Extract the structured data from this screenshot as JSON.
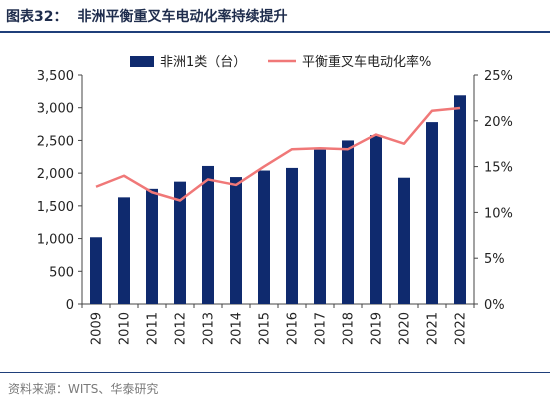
{
  "header": {
    "figure_label": "图表32：",
    "title": "非洲平衡重叉车电动化率持续提升"
  },
  "footer": {
    "source": "资料来源：WITS、华泰研究"
  },
  "colors": {
    "bar": "#0f2a6e",
    "line": "#f07878",
    "rule": "#1f3f7a"
  },
  "chart_data": {
    "type": "bar",
    "categories": [
      "2009",
      "2010",
      "2011",
      "2012",
      "2013",
      "2014",
      "2015",
      "2016",
      "2017",
      "2018",
      "2019",
      "2020",
      "2021",
      "2022"
    ],
    "series": [
      {
        "name": "非洲1类（台）",
        "type": "bar",
        "axis": "left",
        "values": [
          1020,
          1630,
          1760,
          1870,
          2110,
          1940,
          2040,
          2080,
          2360,
          2500,
          2580,
          1930,
          2780,
          3190
        ]
      },
      {
        "name": "平衡重叉车电动化率%",
        "type": "line",
        "axis": "right",
        "values": [
          12.8,
          14.0,
          12.2,
          11.3,
          13.6,
          13.0,
          15.0,
          16.9,
          17.0,
          16.9,
          18.5,
          17.5,
          21.1,
          21.4
        ]
      }
    ],
    "y_left": {
      "min": 0,
      "max": 3500,
      "ticks": [
        "0",
        "500",
        "1,000",
        "1,500",
        "2,000",
        "2,500",
        "3,000",
        "3,500"
      ]
    },
    "y_right": {
      "min": 0,
      "max": 25,
      "ticks": [
        "0%",
        "5%",
        "10%",
        "15%",
        "20%",
        "25%"
      ]
    },
    "legend": "top",
    "grid": false
  }
}
